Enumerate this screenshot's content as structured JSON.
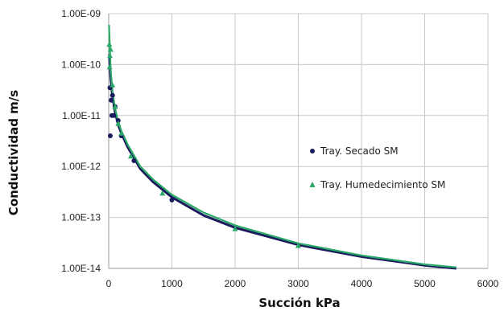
{
  "chart_data": {
    "type": "scatter",
    "xlabel": "Succión kPa",
    "ylabel": "Conductividad m/s",
    "xlim": [
      0,
      6000
    ],
    "ylim": [
      1e-14,
      1e-09
    ],
    "y_scale": "log",
    "grid": true,
    "legend_position": "right",
    "x_tick_labels": [
      "0",
      "1000",
      "2000",
      "3000",
      "4000",
      "5000",
      "6000"
    ],
    "x_tick_values": [
      0,
      1000,
      2000,
      3000,
      4000,
      5000,
      6000
    ],
    "y_tick_labels": [
      "1.00E-14",
      "1.00E-13",
      "1.00E-12",
      "1.00E-11",
      "1.00E-10",
      "1.00E-09"
    ],
    "y_tick_values": [
      1e-14,
      1e-13,
      1e-12,
      1e-11,
      1e-10,
      1e-09
    ],
    "series": [
      {
        "name": "Tray. Secado SM",
        "marker": "circle",
        "color": "#1a1a5e",
        "points": [
          {
            "x": 20,
            "y": 3.5e-11
          },
          {
            "x": 25,
            "y": 4e-12
          },
          {
            "x": 40,
            "y": 2e-11
          },
          {
            "x": 50,
            "y": 1e-11
          },
          {
            "x": 60,
            "y": 2.5e-11
          },
          {
            "x": 80,
            "y": 1e-11
          },
          {
            "x": 100,
            "y": 1.5e-11
          },
          {
            "x": 150,
            "y": 8e-12
          },
          {
            "x": 200,
            "y": 4e-12
          },
          {
            "x": 400,
            "y": 1.3e-12
          },
          {
            "x": 1000,
            "y": 2.2e-13
          }
        ],
        "curve": [
          {
            "x": 10,
            "y": 1.6e-10
          },
          {
            "x": 30,
            "y": 5.6e-11
          },
          {
            "x": 60,
            "y": 2.4e-11
          },
          {
            "x": 100,
            "y": 1.2e-11
          },
          {
            "x": 150,
            "y": 6.6e-12
          },
          {
            "x": 200,
            "y": 4.5e-12
          },
          {
            "x": 300,
            "y": 2.4e-12
          },
          {
            "x": 500,
            "y": 9e-13
          },
          {
            "x": 700,
            "y": 5e-13
          },
          {
            "x": 1000,
            "y": 2.5e-13
          },
          {
            "x": 1500,
            "y": 1.1e-13
          },
          {
            "x": 2000,
            "y": 6.3e-14
          },
          {
            "x": 3000,
            "y": 2.9e-14
          },
          {
            "x": 4000,
            "y": 1.7e-14
          },
          {
            "x": 5000,
            "y": 1.15e-14
          },
          {
            "x": 5500,
            "y": 1e-14
          }
        ]
      },
      {
        "name": "Tray. Humedecimiento SM",
        "marker": "triangle",
        "color": "#2aa868",
        "points": [
          {
            "x": 10,
            "y": 2.5e-10
          },
          {
            "x": 15,
            "y": 9e-11
          },
          {
            "x": 20,
            "y": 1.5e-10
          },
          {
            "x": 30,
            "y": 2e-10
          },
          {
            "x": 60,
            "y": 4e-11
          },
          {
            "x": 100,
            "y": 1.5e-11
          },
          {
            "x": 150,
            "y": 7e-12
          },
          {
            "x": 200,
            "y": 4.5e-12
          },
          {
            "x": 350,
            "y": 1.6e-12
          },
          {
            "x": 850,
            "y": 3e-13
          },
          {
            "x": 2000,
            "y": 6e-14
          },
          {
            "x": 3000,
            "y": 2.8e-14
          }
        ],
        "curve": [
          {
            "x": 5,
            "y": 6e-10
          },
          {
            "x": 30,
            "y": 8e-11
          },
          {
            "x": 60,
            "y": 3e-11
          },
          {
            "x": 100,
            "y": 1.4e-11
          },
          {
            "x": 150,
            "y": 7.6e-12
          },
          {
            "x": 200,
            "y": 5e-12
          },
          {
            "x": 300,
            "y": 2.7e-12
          },
          {
            "x": 500,
            "y": 1e-12
          },
          {
            "x": 700,
            "y": 5.6e-13
          },
          {
            "x": 1000,
            "y": 2.8e-13
          },
          {
            "x": 1500,
            "y": 1.25e-13
          },
          {
            "x": 2000,
            "y": 7e-14
          },
          {
            "x": 3000,
            "y": 3.1e-14
          },
          {
            "x": 4000,
            "y": 1.8e-14
          },
          {
            "x": 5000,
            "y": 1.2e-14
          },
          {
            "x": 5500,
            "y": 1.05e-14
          }
        ]
      }
    ]
  }
}
